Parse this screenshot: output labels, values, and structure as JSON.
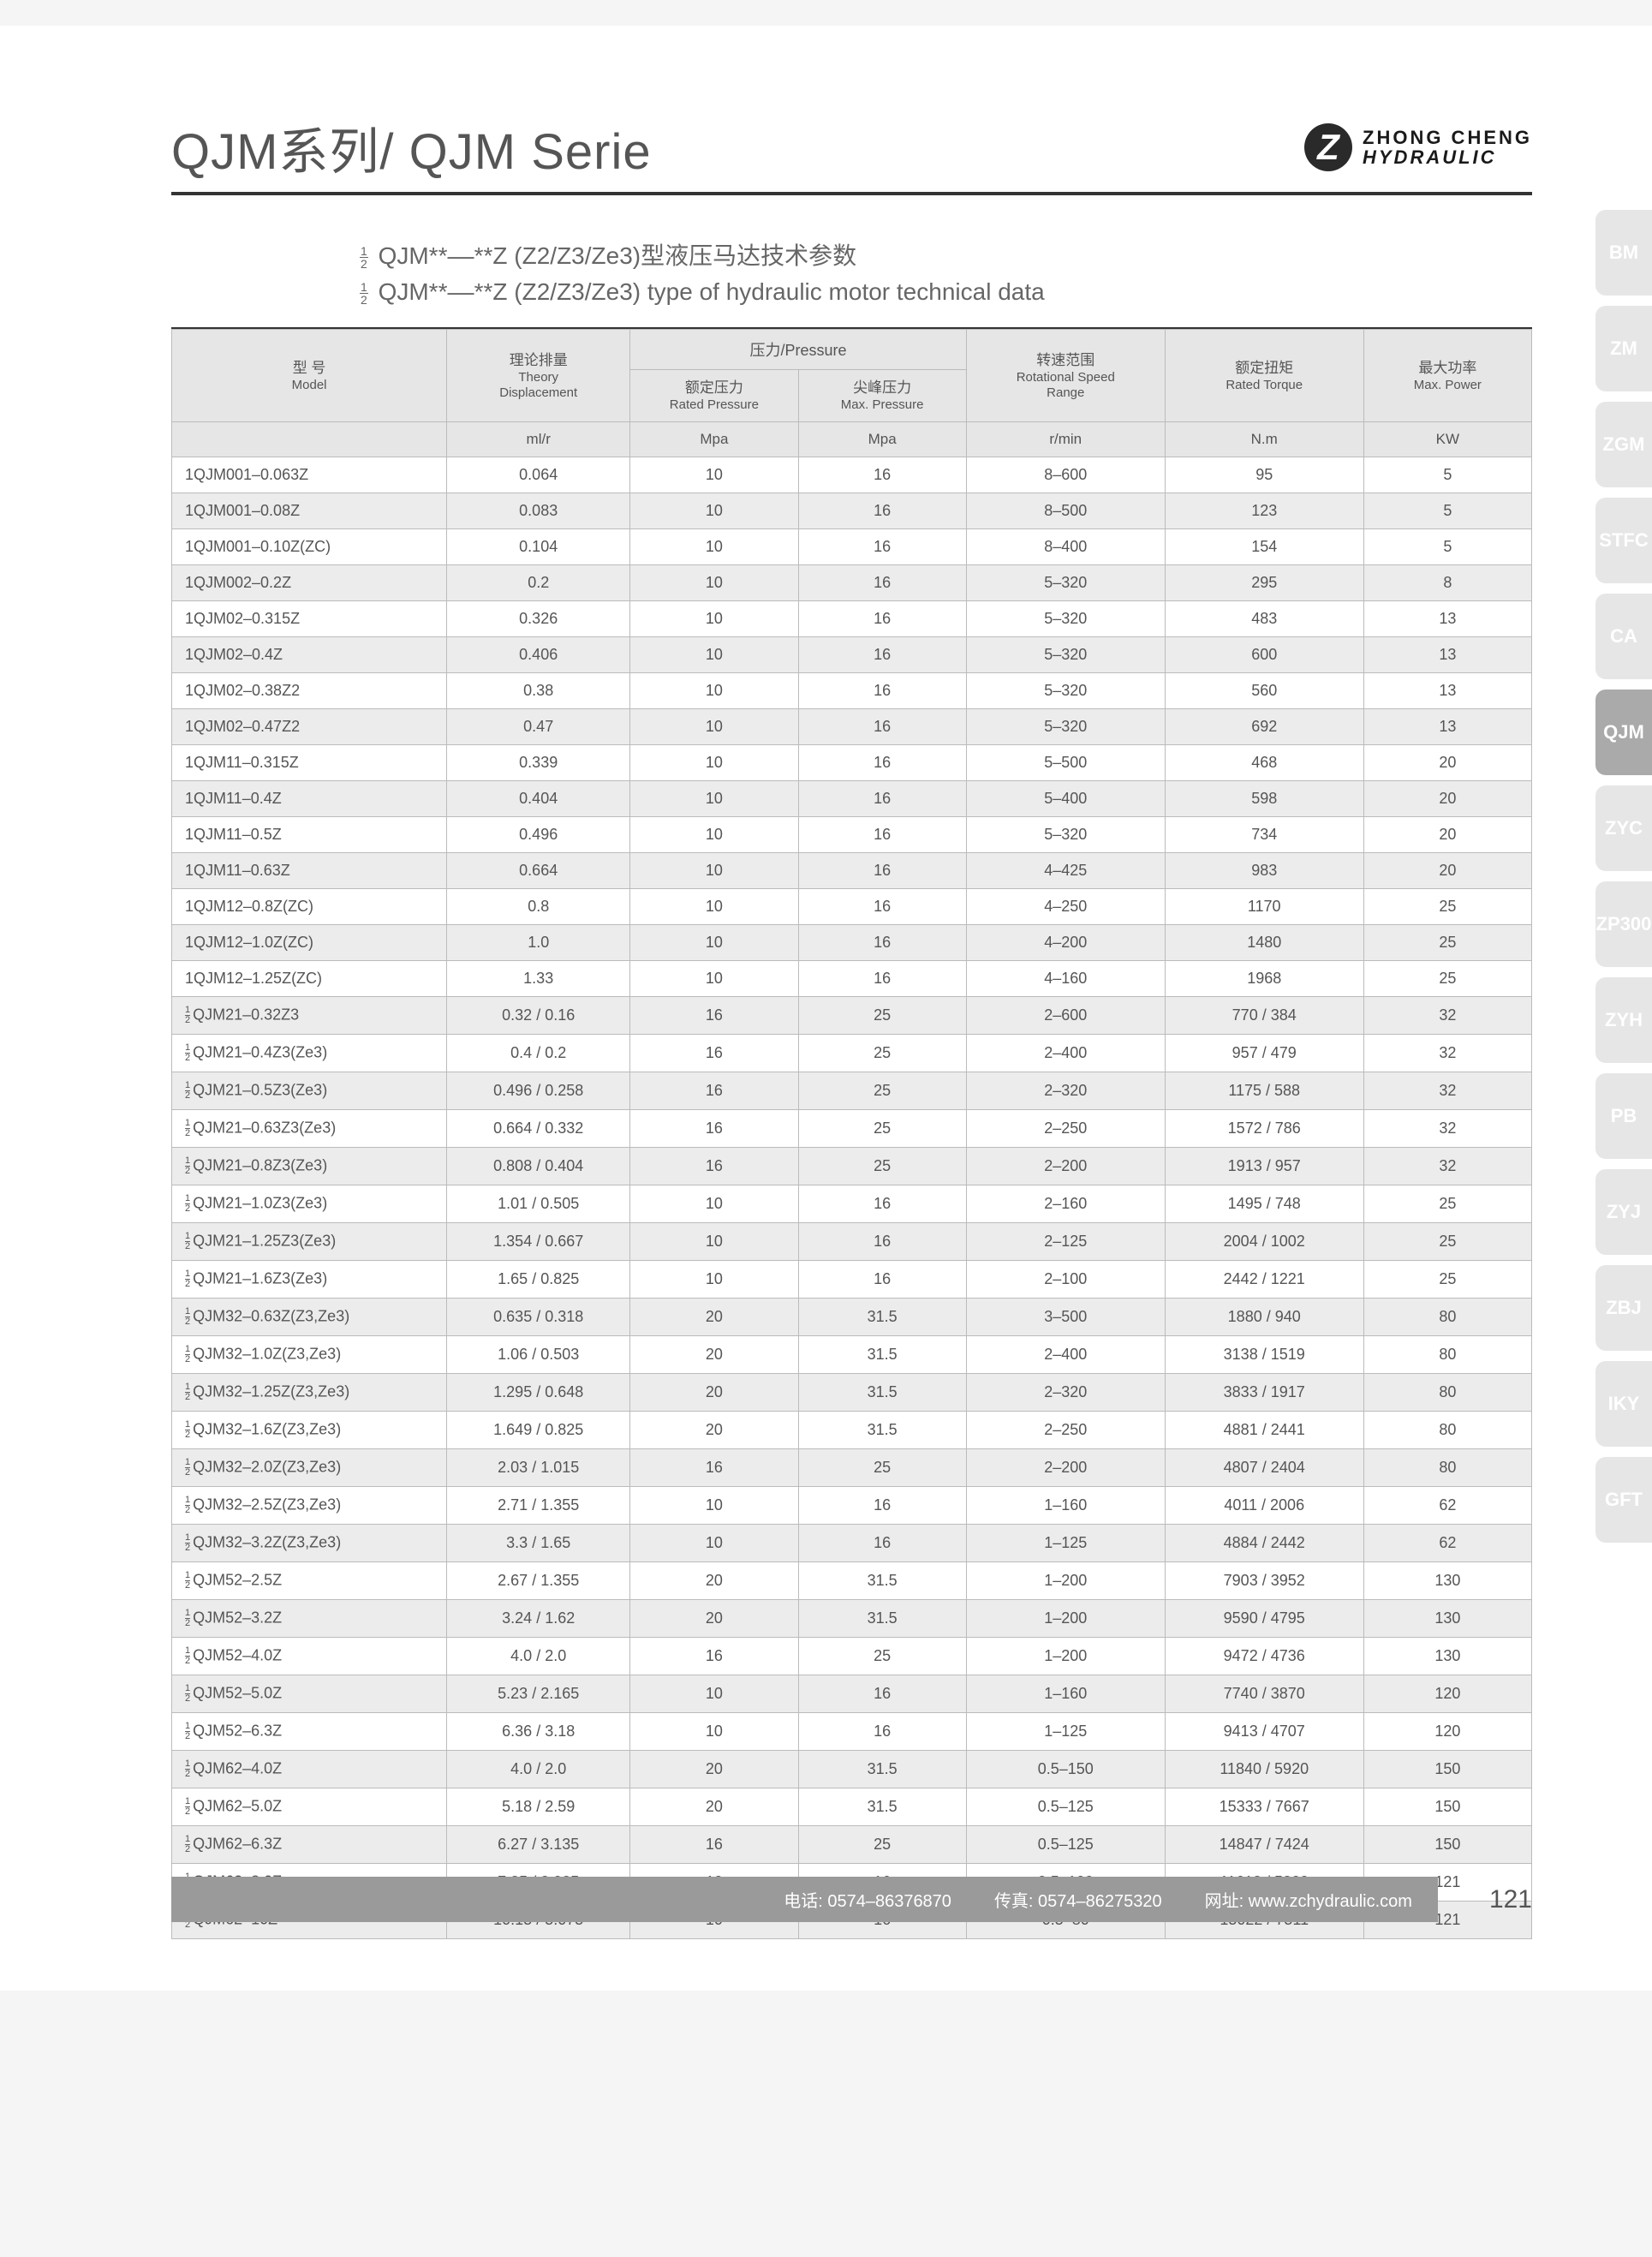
{
  "header": {
    "title": "QJM系列/ QJM Serie",
    "brand_top": "ZHONG CHENG",
    "brand_bottom": "HYDRAULIC",
    "logo_glyph": "Z"
  },
  "subtitles": {
    "line1": "QJM**––**Z (Z2/Z3/Ze3)型液压马达技术参数",
    "line2": "QJM**––**Z (Z2/Z3/Ze3) type of hydraulic motor technical data"
  },
  "colors": {
    "page_bg": "#ffffff",
    "header_rule": "#333333",
    "th_bg": "#e6e6e6",
    "row_alt_bg": "#ececec",
    "border": "#bbbbbb",
    "text": "#555555",
    "footer_bar": "#9a9a9a",
    "tab_inactive": "#e6e6e6",
    "tab_active": "#aaaaaa"
  },
  "table": {
    "headers": {
      "model_cn": "型 号",
      "model_en": "Model",
      "disp_cn": "理论排量",
      "disp_en1": "Theory",
      "disp_en2": "Displacement",
      "pressure_group": "压力/Pressure",
      "rated_p_cn": "额定压力",
      "rated_p_en": "Rated Pressure",
      "max_p_cn": "尖峰压力",
      "max_p_en": "Max. Pressure",
      "speed_cn": "转速范围",
      "speed_en1": "Rotational Speed",
      "speed_en2": "Range",
      "torque_cn": "额定扭矩",
      "torque_en": "Rated Torque",
      "power_cn": "最大功率",
      "power_en": "Max. Power"
    },
    "units": {
      "disp": "ml/r",
      "rated_p": "Mpa",
      "max_p": "Mpa",
      "speed": "r/min",
      "torque": "N.m",
      "power": "KW"
    },
    "rows": [
      {
        "frac": false,
        "model": "1QJM001–0.063Z",
        "disp": "0.064",
        "rp": "10",
        "mp": "16",
        "speed": "8–600",
        "torque": "95",
        "power": "5"
      },
      {
        "frac": false,
        "model": "1QJM001–0.08Z",
        "disp": "0.083",
        "rp": "10",
        "mp": "16",
        "speed": "8–500",
        "torque": "123",
        "power": "5"
      },
      {
        "frac": false,
        "model": "1QJM001–0.10Z(ZC)",
        "disp": "0.104",
        "rp": "10",
        "mp": "16",
        "speed": "8–400",
        "torque": "154",
        "power": "5"
      },
      {
        "frac": false,
        "model": "1QJM002–0.2Z",
        "disp": "0.2",
        "rp": "10",
        "mp": "16",
        "speed": "5–320",
        "torque": "295",
        "power": "8"
      },
      {
        "frac": false,
        "model": "1QJM02–0.315Z",
        "disp": "0.326",
        "rp": "10",
        "mp": "16",
        "speed": "5–320",
        "torque": "483",
        "power": "13"
      },
      {
        "frac": false,
        "model": "1QJM02–0.4Z",
        "disp": "0.406",
        "rp": "10",
        "mp": "16",
        "speed": "5–320",
        "torque": "600",
        "power": "13"
      },
      {
        "frac": false,
        "model": "1QJM02–0.38Z2",
        "disp": "0.38",
        "rp": "10",
        "mp": "16",
        "speed": "5–320",
        "torque": "560",
        "power": "13"
      },
      {
        "frac": false,
        "model": "1QJM02–0.47Z2",
        "disp": "0.47",
        "rp": "10",
        "mp": "16",
        "speed": "5–320",
        "torque": "692",
        "power": "13"
      },
      {
        "frac": false,
        "model": "1QJM11–0.315Z",
        "disp": "0.339",
        "rp": "10",
        "mp": "16",
        "speed": "5–500",
        "torque": "468",
        "power": "20"
      },
      {
        "frac": false,
        "model": "1QJM11–0.4Z",
        "disp": "0.404",
        "rp": "10",
        "mp": "16",
        "speed": "5–400",
        "torque": "598",
        "power": "20"
      },
      {
        "frac": false,
        "model": "1QJM11–0.5Z",
        "disp": "0.496",
        "rp": "10",
        "mp": "16",
        "speed": "5–320",
        "torque": "734",
        "power": "20"
      },
      {
        "frac": false,
        "model": "1QJM11–0.63Z",
        "disp": "0.664",
        "rp": "10",
        "mp": "16",
        "speed": "4–425",
        "torque": "983",
        "power": "20"
      },
      {
        "frac": false,
        "model": "1QJM12–0.8Z(ZC)",
        "disp": "0.8",
        "rp": "10",
        "mp": "16",
        "speed": "4–250",
        "torque": "1170",
        "power": "25"
      },
      {
        "frac": false,
        "model": "1QJM12–1.0Z(ZC)",
        "disp": "1.0",
        "rp": "10",
        "mp": "16",
        "speed": "4–200",
        "torque": "1480",
        "power": "25"
      },
      {
        "frac": false,
        "model": "1QJM12–1.25Z(ZC)",
        "disp": "1.33",
        "rp": "10",
        "mp": "16",
        "speed": "4–160",
        "torque": "1968",
        "power": "25"
      },
      {
        "frac": true,
        "model": "QJM21–0.32Z3",
        "disp": "0.32 / 0.16",
        "rp": "16",
        "mp": "25",
        "speed": "2–600",
        "torque": "770 / 384",
        "power": "32"
      },
      {
        "frac": true,
        "model": "QJM21–0.4Z3(Ze3)",
        "disp": "0.4 / 0.2",
        "rp": "16",
        "mp": "25",
        "speed": "2–400",
        "torque": "957 / 479",
        "power": "32"
      },
      {
        "frac": true,
        "model": "QJM21–0.5Z3(Ze3)",
        "disp": "0.496 / 0.258",
        "rp": "16",
        "mp": "25",
        "speed": "2–320",
        "torque": "1175 / 588",
        "power": "32"
      },
      {
        "frac": true,
        "model": "QJM21–0.63Z3(Ze3)",
        "disp": "0.664 / 0.332",
        "rp": "16",
        "mp": "25",
        "speed": "2–250",
        "torque": "1572 / 786",
        "power": "32"
      },
      {
        "frac": true,
        "model": "QJM21–0.8Z3(Ze3)",
        "disp": "0.808 / 0.404",
        "rp": "16",
        "mp": "25",
        "speed": "2–200",
        "torque": "1913 / 957",
        "power": "32"
      },
      {
        "frac": true,
        "model": "QJM21–1.0Z3(Ze3)",
        "disp": "1.01 / 0.505",
        "rp": "10",
        "mp": "16",
        "speed": "2–160",
        "torque": "1495 / 748",
        "power": "25"
      },
      {
        "frac": true,
        "model": "QJM21–1.25Z3(Ze3)",
        "disp": "1.354 / 0.667",
        "rp": "10",
        "mp": "16",
        "speed": "2–125",
        "torque": "2004 / 1002",
        "power": "25"
      },
      {
        "frac": true,
        "model": "QJM21–1.6Z3(Ze3)",
        "disp": "1.65 / 0.825",
        "rp": "10",
        "mp": "16",
        "speed": "2–100",
        "torque": "2442 / 1221",
        "power": "25"
      },
      {
        "frac": true,
        "model": "QJM32–0.63Z(Z3,Ze3)",
        "disp": "0.635 / 0.318",
        "rp": "20",
        "mp": "31.5",
        "speed": "3–500",
        "torque": "1880 / 940",
        "power": "80"
      },
      {
        "frac": true,
        "model": "QJM32–1.0Z(Z3,Ze3)",
        "disp": "1.06 / 0.503",
        "rp": "20",
        "mp": "31.5",
        "speed": "2–400",
        "torque": "3138 / 1519",
        "power": "80"
      },
      {
        "frac": true,
        "model": "QJM32–1.25Z(Z3,Ze3)",
        "disp": "1.295 / 0.648",
        "rp": "20",
        "mp": "31.5",
        "speed": "2–320",
        "torque": "3833 / 1917",
        "power": "80"
      },
      {
        "frac": true,
        "model": "QJM32–1.6Z(Z3,Ze3)",
        "disp": "1.649 / 0.825",
        "rp": "20",
        "mp": "31.5",
        "speed": "2–250",
        "torque": "4881 / 2441",
        "power": "80"
      },
      {
        "frac": true,
        "model": "QJM32–2.0Z(Z3,Ze3)",
        "disp": "2.03 / 1.015",
        "rp": "16",
        "mp": "25",
        "speed": "2–200",
        "torque": "4807 / 2404",
        "power": "80"
      },
      {
        "frac": true,
        "model": "QJM32–2.5Z(Z3,Ze3)",
        "disp": "2.71 / 1.355",
        "rp": "10",
        "mp": "16",
        "speed": "1–160",
        "torque": "4011 / 2006",
        "power": "62"
      },
      {
        "frac": true,
        "model": "QJM32–3.2Z(Z3,Ze3)",
        "disp": "3.3 / 1.65",
        "rp": "10",
        "mp": "16",
        "speed": "1–125",
        "torque": "4884 / 2442",
        "power": "62"
      },
      {
        "frac": true,
        "model": "QJM52–2.5Z",
        "disp": "2.67 / 1.355",
        "rp": "20",
        "mp": "31.5",
        "speed": "1–200",
        "torque": "7903 / 3952",
        "power": "130"
      },
      {
        "frac": true,
        "model": "QJM52–3.2Z",
        "disp": "3.24 / 1.62",
        "rp": "20",
        "mp": "31.5",
        "speed": "1–200",
        "torque": "9590 / 4795",
        "power": "130"
      },
      {
        "frac": true,
        "model": "QJM52–4.0Z",
        "disp": "4.0 / 2.0",
        "rp": "16",
        "mp": "25",
        "speed": "1–200",
        "torque": "9472 / 4736",
        "power": "130"
      },
      {
        "frac": true,
        "model": "QJM52–5.0Z",
        "disp": "5.23 / 2.165",
        "rp": "10",
        "mp": "16",
        "speed": "1–160",
        "torque": "7740 / 3870",
        "power": "120"
      },
      {
        "frac": true,
        "model": "QJM52–6.3Z",
        "disp": "6.36 / 3.18",
        "rp": "10",
        "mp": "16",
        "speed": "1–125",
        "torque": "9413 / 4707",
        "power": "120"
      },
      {
        "frac": true,
        "model": "QJM62–4.0Z",
        "disp": "4.0 / 2.0",
        "rp": "20",
        "mp": "31.5",
        "speed": "0.5–150",
        "torque": "11840 / 5920",
        "power": "150"
      },
      {
        "frac": true,
        "model": "QJM62–5.0Z",
        "disp": "5.18 / 2.59",
        "rp": "20",
        "mp": "31.5",
        "speed": "0.5–125",
        "torque": "15333 / 7667",
        "power": "150"
      },
      {
        "frac": true,
        "model": "QJM62–6.3Z",
        "disp": "6.27 / 3.135",
        "rp": "16",
        "mp": "25",
        "speed": "0.5–125",
        "torque": "14847 / 7424",
        "power": "150"
      },
      {
        "frac": true,
        "model": "QJM62–8.0Z",
        "disp": "7.85 / 3.925",
        "rp": "10",
        "mp": "16",
        "speed": "0.5–100",
        "torque": "11618 / 5809",
        "power": "121"
      },
      {
        "frac": true,
        "model": "QJM62–10Z",
        "disp": "10.15 / 5.075",
        "rp": "10",
        "mp": "16",
        "speed": "0.5–80",
        "torque": "15022 / 7511",
        "power": "121"
      }
    ]
  },
  "side_tabs": [
    {
      "label": "BM",
      "active": false
    },
    {
      "label": "ZM",
      "active": false
    },
    {
      "label": "ZGM",
      "active": false
    },
    {
      "label": "STFC",
      "active": false
    },
    {
      "label": "CA",
      "active": false
    },
    {
      "label": "QJM",
      "active": true
    },
    {
      "label": "ZYC",
      "active": false
    },
    {
      "label": "ZP300",
      "active": false
    },
    {
      "label": "ZYH",
      "active": false
    },
    {
      "label": "PB",
      "active": false
    },
    {
      "label": "ZYJ",
      "active": false
    },
    {
      "label": "ZBJ",
      "active": false
    },
    {
      "label": "IKY",
      "active": false
    },
    {
      "label": "GFT",
      "active": false
    }
  ],
  "footer": {
    "phone": "电话: 0574–86376870",
    "fax": "传真: 0574–86275320",
    "web": "网址: www.zchydraulic.com",
    "page": "121"
  }
}
